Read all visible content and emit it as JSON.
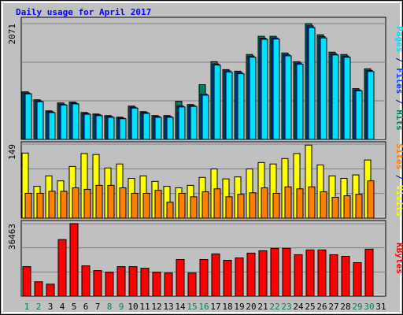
{
  "chart_data": {
    "type": "bar",
    "title": "Daily usage for April 2017",
    "categories": [
      "1",
      "2",
      "3",
      "4",
      "5",
      "6",
      "7",
      "8",
      "9",
      "10",
      "11",
      "12",
      "13",
      "14",
      "15",
      "16",
      "17",
      "18",
      "19",
      "20",
      "21",
      "22",
      "23",
      "24",
      "25",
      "26",
      "27",
      "28",
      "29",
      "30",
      "31"
    ],
    "category_colors": [
      "#00805c",
      "#00805c",
      "#000000",
      "#000000",
      "#000000",
      "#000000",
      "#000000",
      "#00805c",
      "#00805c",
      "#000000",
      "#000000",
      "#000000",
      "#000000",
      "#000000",
      "#00805c",
      "#00805c",
      "#000000",
      "#000000",
      "#000000",
      "#000000",
      "#000000",
      "#00805c",
      "#00805c",
      "#000000",
      "#000000",
      "#000000",
      "#000000",
      "#000000",
      "#00805c",
      "#00805c",
      "#000000"
    ],
    "legend_separator": " / ",
    "panels": [
      {
        "ylim": [
          0,
          2071
        ],
        "yticks": [
          2071
        ],
        "series": [
          {
            "name": "Hits",
            "color": "#00805c",
            "values": [
              851,
              709,
              511,
              652,
              667,
              482,
              454,
              426,
              397,
              596,
              496,
              426,
              426,
              681,
              624,
              979,
              1390,
              1248,
              1220,
              1518,
              1844,
              1844,
              1546,
              1390,
              2071,
              1872,
              1560,
              1518,
              908,
              1262,
              0
            ]
          },
          {
            "name": "Files",
            "color": "#0040ff",
            "values": [
              830,
              690,
              495,
              630,
              650,
              465,
              440,
              410,
              382,
              575,
              480,
              410,
              410,
              600,
              605,
              810,
              1350,
              1225,
              1195,
              1490,
              1810,
              1815,
              1515,
              1365,
              2030,
              1840,
              1530,
              1490,
              885,
              1235,
              0
            ]
          },
          {
            "name": "Pages",
            "color": "#00e0ff",
            "values": [
              815,
              675,
              480,
              615,
              635,
              450,
              425,
              395,
              370,
              560,
              465,
              395,
              395,
              580,
              590,
              790,
              1330,
              1205,
              1175,
              1470,
              1790,
              1795,
              1495,
              1345,
              2000,
              1815,
              1510,
              1470,
              870,
              1215,
              0
            ]
          }
        ]
      },
      {
        "ylim": [
          0,
          149
        ],
        "yticks": [
          149
        ],
        "series": [
          {
            "name": "Visits",
            "color": "#ffff00",
            "values": [
              131,
              64,
              85,
              75,
              104,
              130,
              128,
              101,
              109,
              80,
              85,
              74,
              64,
              61,
              66,
              82,
              99,
              79,
              83,
              99,
              112,
              109,
              120,
              130,
              147,
              107,
              85,
              80,
              87,
              117,
              0
            ]
          },
          {
            "name": "Sites",
            "color": "#ff8000",
            "values": [
              50,
              50,
              54,
              54,
              61,
              58,
              66,
              66,
              61,
              50,
              50,
              56,
              32,
              50,
              43,
              53,
              59,
              43,
              48,
              51,
              61,
              50,
              63,
              59,
              63,
              53,
              42,
              45,
              48,
              75,
              0
            ]
          }
        ]
      },
      {
        "ylim": [
          0,
          36463
        ],
        "yticks": [
          36463
        ],
        "series": [
          {
            "name": "KBytes",
            "color": "#ff0000",
            "values": [
              14826,
              7212,
              6011,
              28449,
              36463,
              15226,
              12823,
              12021,
              14826,
              14826,
              14025,
              12021,
              11621,
              18433,
              11621,
              18433,
              21237,
              18032,
              19234,
              21638,
              22840,
              24042,
              24042,
              20837,
              23241,
              23241,
              20837,
              20035,
              16829,
              23641,
              0
            ]
          }
        ]
      }
    ]
  }
}
